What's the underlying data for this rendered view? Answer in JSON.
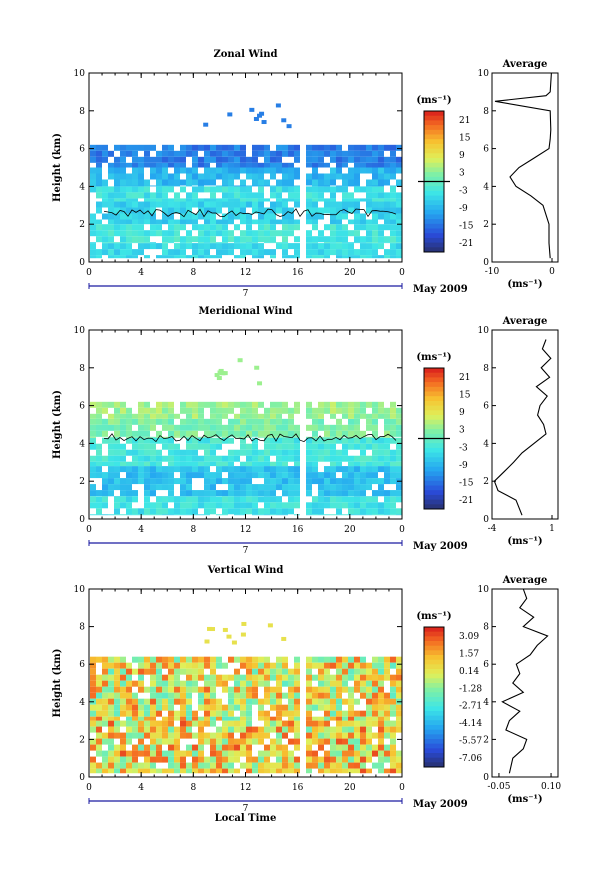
{
  "chart_data": [
    {
      "type": "heatmap",
      "title": "Zonal Wind",
      "ylabel": "Height (km)",
      "ylim": [
        0,
        10
      ],
      "yticks": [
        "0",
        "2",
        "4",
        "6",
        "8",
        "10"
      ],
      "xlim": [
        0,
        24
      ],
      "xticks": [
        "0",
        "4",
        "8",
        "12",
        "16",
        "20",
        "0"
      ],
      "date_label": "7",
      "month_label": "May 2009",
      "colorbar": {
        "unit": "(ms⁻¹)",
        "ticks": [
          "21",
          "15",
          "9",
          "3",
          "-3",
          "-9",
          "-15",
          "-21"
        ],
        "range": [
          -24,
          24
        ],
        "zero_line": 0
      },
      "rows": [
        {
          "h0": 0.2,
          "h1": 1.0,
          "value": -5
        },
        {
          "h0": 1.0,
          "h1": 2.0,
          "value": -3
        },
        {
          "h0": 2.0,
          "h1": 3.2,
          "value": -6
        },
        {
          "h0": 3.2,
          "h1": 4.0,
          "value": -4
        },
        {
          "h0": 4.0,
          "h1": 5.0,
          "value": -9
        },
        {
          "h0": 5.0,
          "h1": 6.2,
          "value": -14
        }
      ],
      "gap_x": [
        15.9,
        16.5
      ],
      "contour": "0",
      "avg_profile": {
        "title": "Average",
        "xlim": [
          -10,
          1
        ],
        "xticks": [
          "-10",
          "0"
        ],
        "xlabel": "(ms⁻¹)",
        "heights": [
          0.2,
          1.0,
          2.0,
          3.0,
          3.5,
          4.0,
          4.5,
          5.0,
          5.5,
          6.0,
          6.5,
          7.0,
          8.0,
          8.5,
          8.8,
          9.0,
          10.0
        ],
        "values": [
          -0.3,
          -0.5,
          -0.5,
          -1.5,
          -3.5,
          -6.0,
          -7.0,
          -5.5,
          -3.0,
          -0.5,
          -0.3,
          -0.2,
          -0.3,
          -9.5,
          -1.0,
          -0.3,
          -0.1
        ]
      }
    },
    {
      "type": "heatmap",
      "title": "Meridional Wind",
      "ylabel": "Height (km)",
      "ylim": [
        0,
        10
      ],
      "yticks": [
        "0",
        "2",
        "4",
        "6",
        "8",
        "10"
      ],
      "xlim": [
        0,
        24
      ],
      "xticks": [
        "0",
        "4",
        "8",
        "12",
        "16",
        "20",
        "0"
      ],
      "date_label": "7",
      "month_label": "May 2009",
      "colorbar": {
        "unit": "(ms⁻¹)",
        "ticks": [
          "21",
          "15",
          "9",
          "3",
          "-3",
          "-9",
          "-15",
          "-21"
        ],
        "range": [
          -24,
          24
        ],
        "zero_line": 0
      },
      "rows": [
        {
          "h0": 0.2,
          "h1": 1.2,
          "value": -4
        },
        {
          "h0": 1.2,
          "h1": 2.8,
          "value": -8
        },
        {
          "h0": 2.8,
          "h1": 4.3,
          "value": -3
        },
        {
          "h0": 4.3,
          "h1": 5.3,
          "value": 2
        },
        {
          "h0": 5.3,
          "h1": 6.2,
          "value": 4
        }
      ],
      "gap_x": [
        15.9,
        16.5
      ],
      "contour": "0",
      "avg_profile": {
        "title": "Average",
        "xlim": [
          -4,
          1.5
        ],
        "xticks": [
          "-4",
          "1"
        ],
        "xlabel": "(ms⁻¹)",
        "heights": [
          0.2,
          1.0,
          1.5,
          2.0,
          2.5,
          3.0,
          3.5,
          4.0,
          4.5,
          5.0,
          5.5,
          6.0,
          6.5,
          7.0,
          7.5,
          8.0,
          8.5,
          9.0,
          9.5
        ],
        "values": [
          -1.5,
          -2.0,
          -3.5,
          -3.8,
          -3.0,
          -2.2,
          -1.5,
          -0.5,
          0.5,
          0.3,
          -0.2,
          0.0,
          0.6,
          -0.3,
          0.8,
          0.1,
          0.9,
          0.2,
          0.5
        ]
      }
    },
    {
      "type": "heatmap",
      "title": "Vertical Wind",
      "ylabel": "Height (km)",
      "xlabel": "Local Time",
      "ylim": [
        0,
        10
      ],
      "yticks": [
        "0",
        "2",
        "4",
        "6",
        "8",
        "10"
      ],
      "xlim": [
        0,
        24
      ],
      "xticks": [
        "0",
        "4",
        "8",
        "12",
        "16",
        "20",
        "0"
      ],
      "date_label": "7",
      "month_label": "May 2009",
      "colorbar": {
        "unit": "(ms⁻¹)",
        "ticks": [
          "3.09",
          "1.57",
          "0.14",
          "-1.28",
          "-2.71",
          "-4.14",
          "-5.57",
          "-7.06"
        ],
        "range": [
          -7.8,
          3.8
        ],
        "zero_line": null
      },
      "rows": [
        {
          "h0": 0.2,
          "h1": 3.0,
          "value": 0.6
        },
        {
          "h0": 3.0,
          "h1": 6.4,
          "value": 0.3
        }
      ],
      "gap_x": [
        15.9,
        16.5
      ],
      "contour": null,
      "avg_profile": {
        "title": "Average",
        "xlim": [
          -0.07,
          0.12
        ],
        "xticks": [
          "-0.05",
          "0.10"
        ],
        "xlabel": "(ms⁻¹)",
        "heights": [
          0.2,
          1.0,
          1.5,
          2.0,
          2.5,
          3.0,
          3.5,
          4.0,
          4.5,
          5.0,
          5.5,
          6.0,
          6.5,
          7.0,
          7.5,
          8.0,
          8.5,
          9.0,
          9.5,
          10.0
        ],
        "values": [
          -0.02,
          -0.01,
          0.02,
          0.03,
          -0.03,
          -0.02,
          0.01,
          -0.04,
          0.02,
          -0.01,
          0.01,
          0.0,
          0.04,
          0.06,
          0.09,
          0.02,
          0.05,
          0.01,
          0.03,
          0.02
        ]
      }
    }
  ]
}
